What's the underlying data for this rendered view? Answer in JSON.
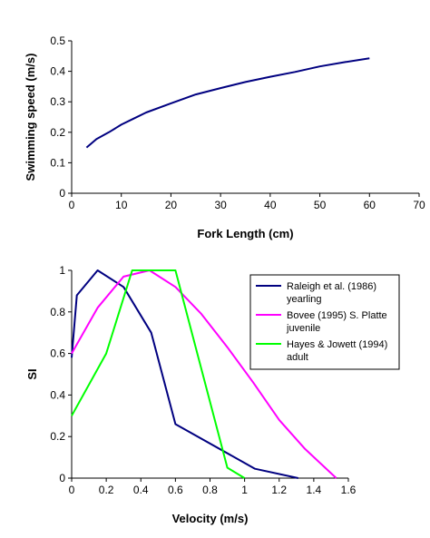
{
  "chart_data": [
    {
      "type": "line",
      "xlabel": "Fork Length (cm)",
      "ylabel": "Swimming speed (m/s)",
      "xlim": [
        0,
        70
      ],
      "ylim": [
        0,
        0.5
      ],
      "xticks": [
        "0",
        "10",
        "20",
        "30",
        "40",
        "50",
        "60",
        "70"
      ],
      "yticks": [
        "0",
        "0.1",
        "0.2",
        "0.3",
        "0.4",
        "0.5"
      ],
      "grid": false,
      "colors": {
        "line": "#000080"
      },
      "series": [
        {
          "x": [
            3,
            5,
            7.5,
            10,
            12.5,
            15,
            20,
            25,
            30,
            35,
            40,
            45,
            50,
            55,
            60
          ],
          "y": [
            0.15,
            0.178,
            0.2,
            0.225,
            0.245,
            0.265,
            0.295,
            0.324,
            0.345,
            0.365,
            0.382,
            0.398,
            0.416,
            0.43,
            0.443
          ]
        }
      ]
    },
    {
      "type": "line",
      "xlabel": "Velocity (m/s)",
      "ylabel": "SI",
      "xlim": [
        0,
        1.6
      ],
      "ylim": [
        0,
        1
      ],
      "xticks": [
        "0",
        "0.2",
        "0.4",
        "0.6",
        "0.8",
        "1",
        "1.2",
        "1.4",
        "1.6"
      ],
      "yticks": [
        "0",
        "0.2",
        "0.4",
        "0.6",
        "0.8",
        "1"
      ],
      "grid": false,
      "legend_position": "top-right",
      "series": [
        {
          "name": [
            "Raleigh et al. (1986)",
            "yearling"
          ],
          "color": "#000080",
          "x": [
            0,
            0.03,
            0.15,
            0.3,
            0.46,
            0.6,
            1.06,
            1.31
          ],
          "y": [
            0.58,
            0.88,
            1.0,
            0.92,
            0.7,
            0.26,
            0.045,
            0.0
          ]
        },
        {
          "name": [
            "Bovee (1995) S. Platte",
            "juvenile"
          ],
          "color": "#ff00ff",
          "x": [
            0,
            0.15,
            0.3,
            0.45,
            0.6,
            0.75,
            0.9,
            1.05,
            1.2,
            1.35,
            1.53
          ],
          "y": [
            0.6,
            0.82,
            0.97,
            1.0,
            0.92,
            0.79,
            0.63,
            0.46,
            0.28,
            0.14,
            0.0
          ]
        },
        {
          "name": [
            "Hayes & Jowett (1994)",
            "adult"
          ],
          "color": "#00ff00",
          "x": [
            0,
            0.2,
            0.35,
            0.6,
            0.9,
            1.0
          ],
          "y": [
            0.3,
            0.6,
            1.0,
            1.0,
            0.05,
            0.0
          ]
        }
      ]
    }
  ]
}
